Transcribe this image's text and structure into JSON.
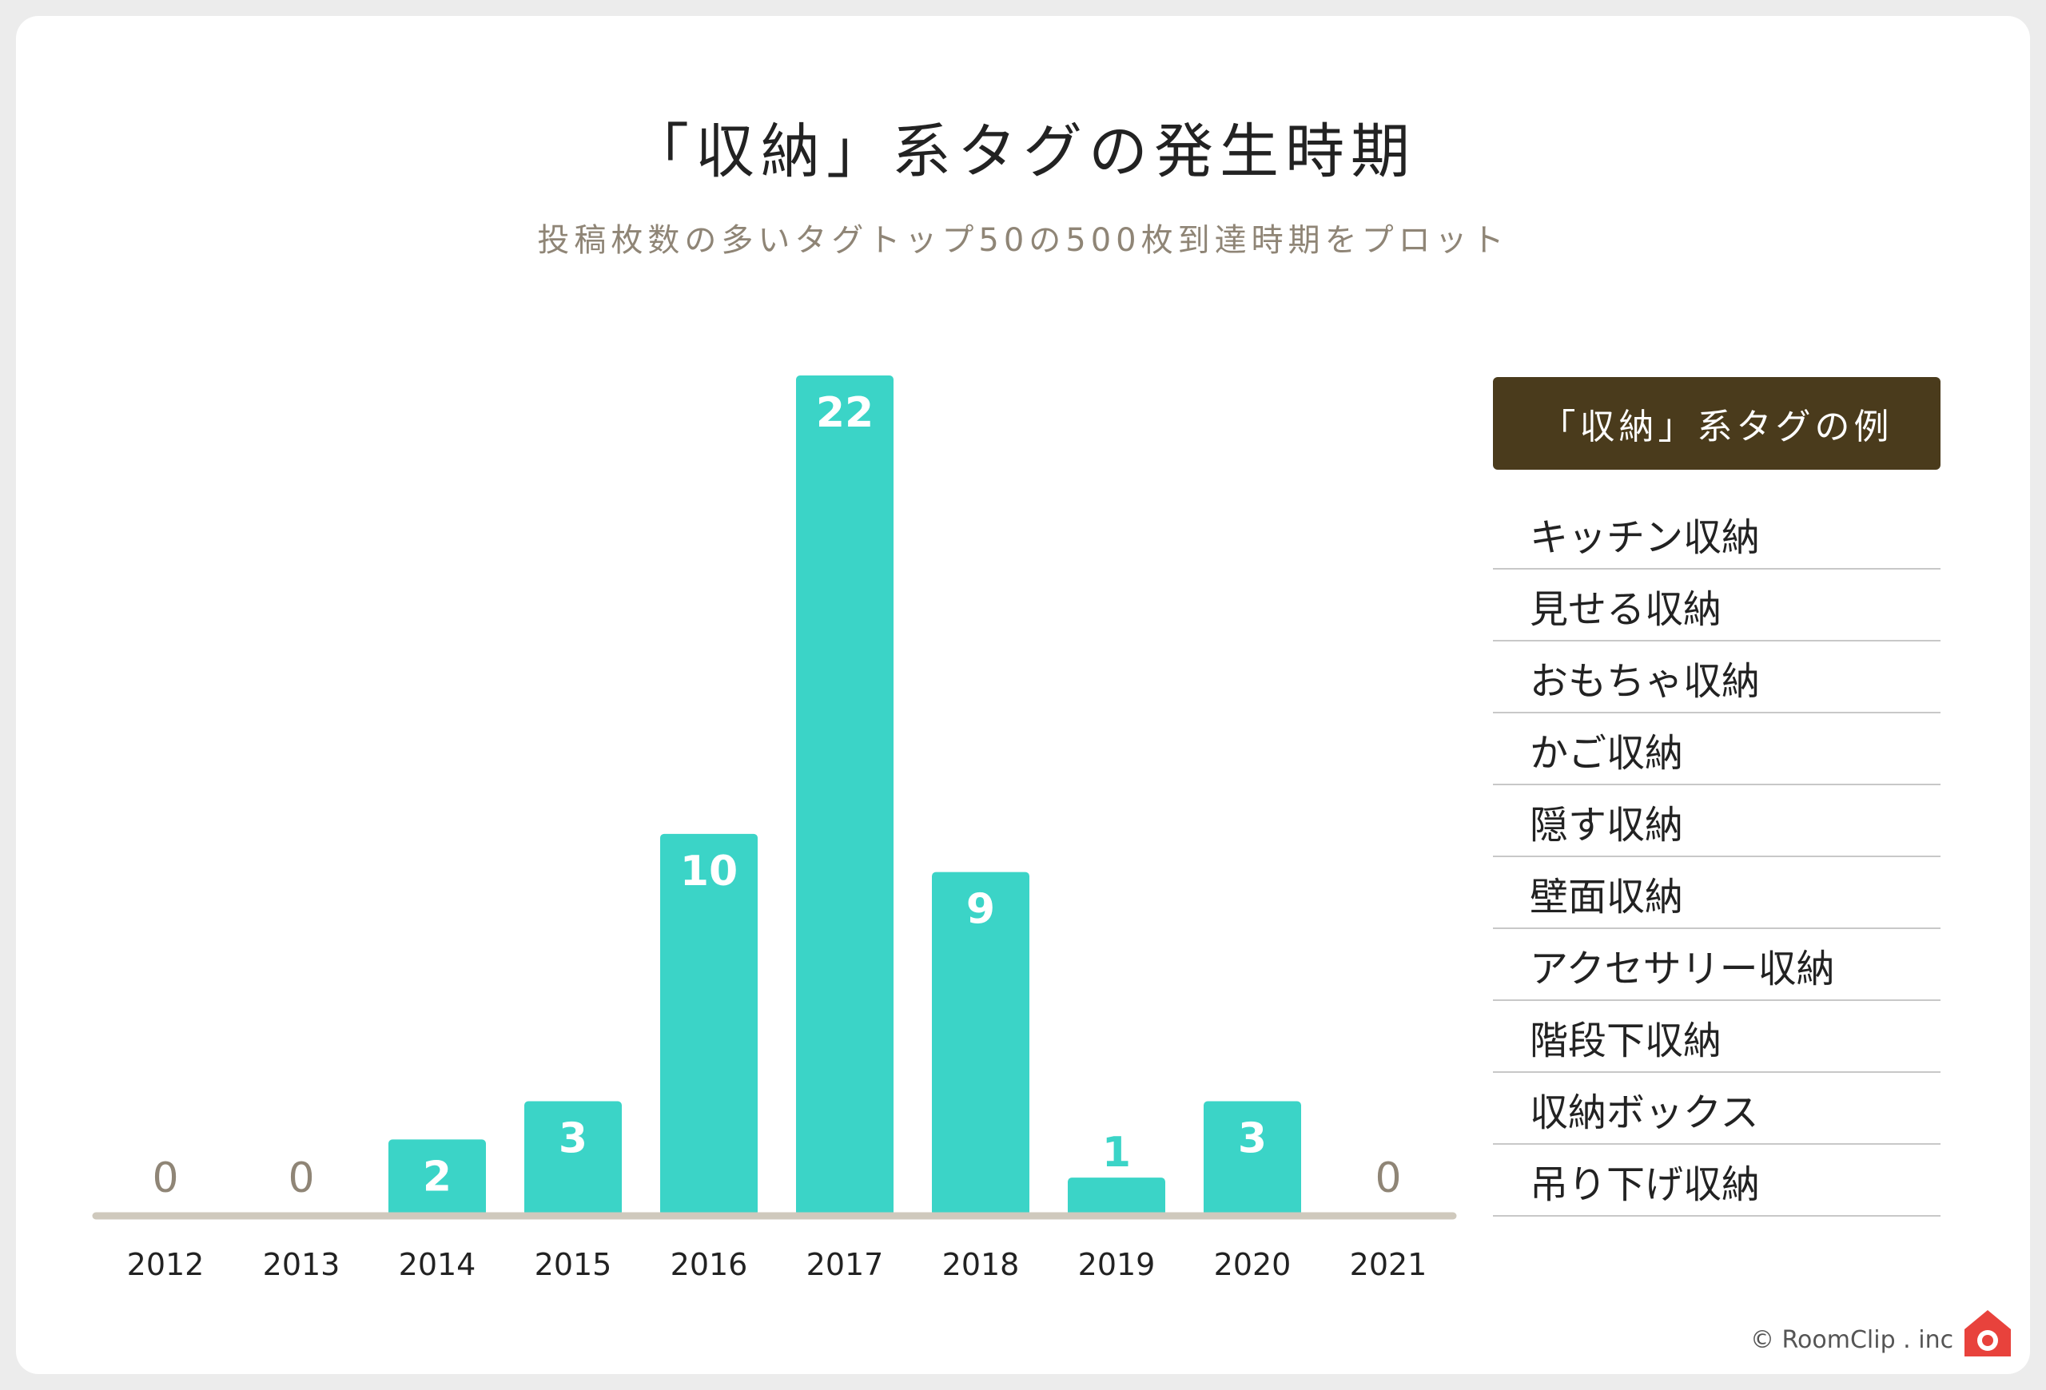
{
  "header": {
    "title": "「収納」系タグの発生時期",
    "subtitle": "投稿枚数の多いタグトップ50の500枚到達時期をプロット"
  },
  "chart_data": {
    "type": "bar",
    "title": "「収納」系タグの発生時期",
    "subtitle": "投稿枚数の多いタグトップ50の500枚到達時期をプロット",
    "categories": [
      "2012",
      "2013",
      "2014",
      "2015",
      "2016",
      "2017",
      "2018",
      "2019",
      "2020",
      "2021"
    ],
    "values": [
      0,
      0,
      2,
      3,
      10,
      22,
      9,
      1,
      3,
      0
    ],
    "xlabel": "",
    "ylabel": "",
    "ylim": [
      0,
      22
    ],
    "grid": false,
    "colors": {
      "bar": "#3bd4c7",
      "axis": "#cfc9bd",
      "label_inside": "#ffffff",
      "label_zero": "#8f8576"
    }
  },
  "legend": {
    "header": "「収納」系タグの例",
    "items": [
      "キッチン収納",
      "見せる収納",
      "おもちゃ収納",
      "かご収納",
      "隠す収納",
      "壁面収納",
      "アクセサリー収納",
      "階段下収納",
      "収納ボックス",
      "吊り下げ収納"
    ],
    "header_color": "#4a3b1c"
  },
  "footer": {
    "credit": "© RoomClip . inc",
    "logo_icon": "camera-house-icon",
    "logo_color": "#e8423c"
  }
}
